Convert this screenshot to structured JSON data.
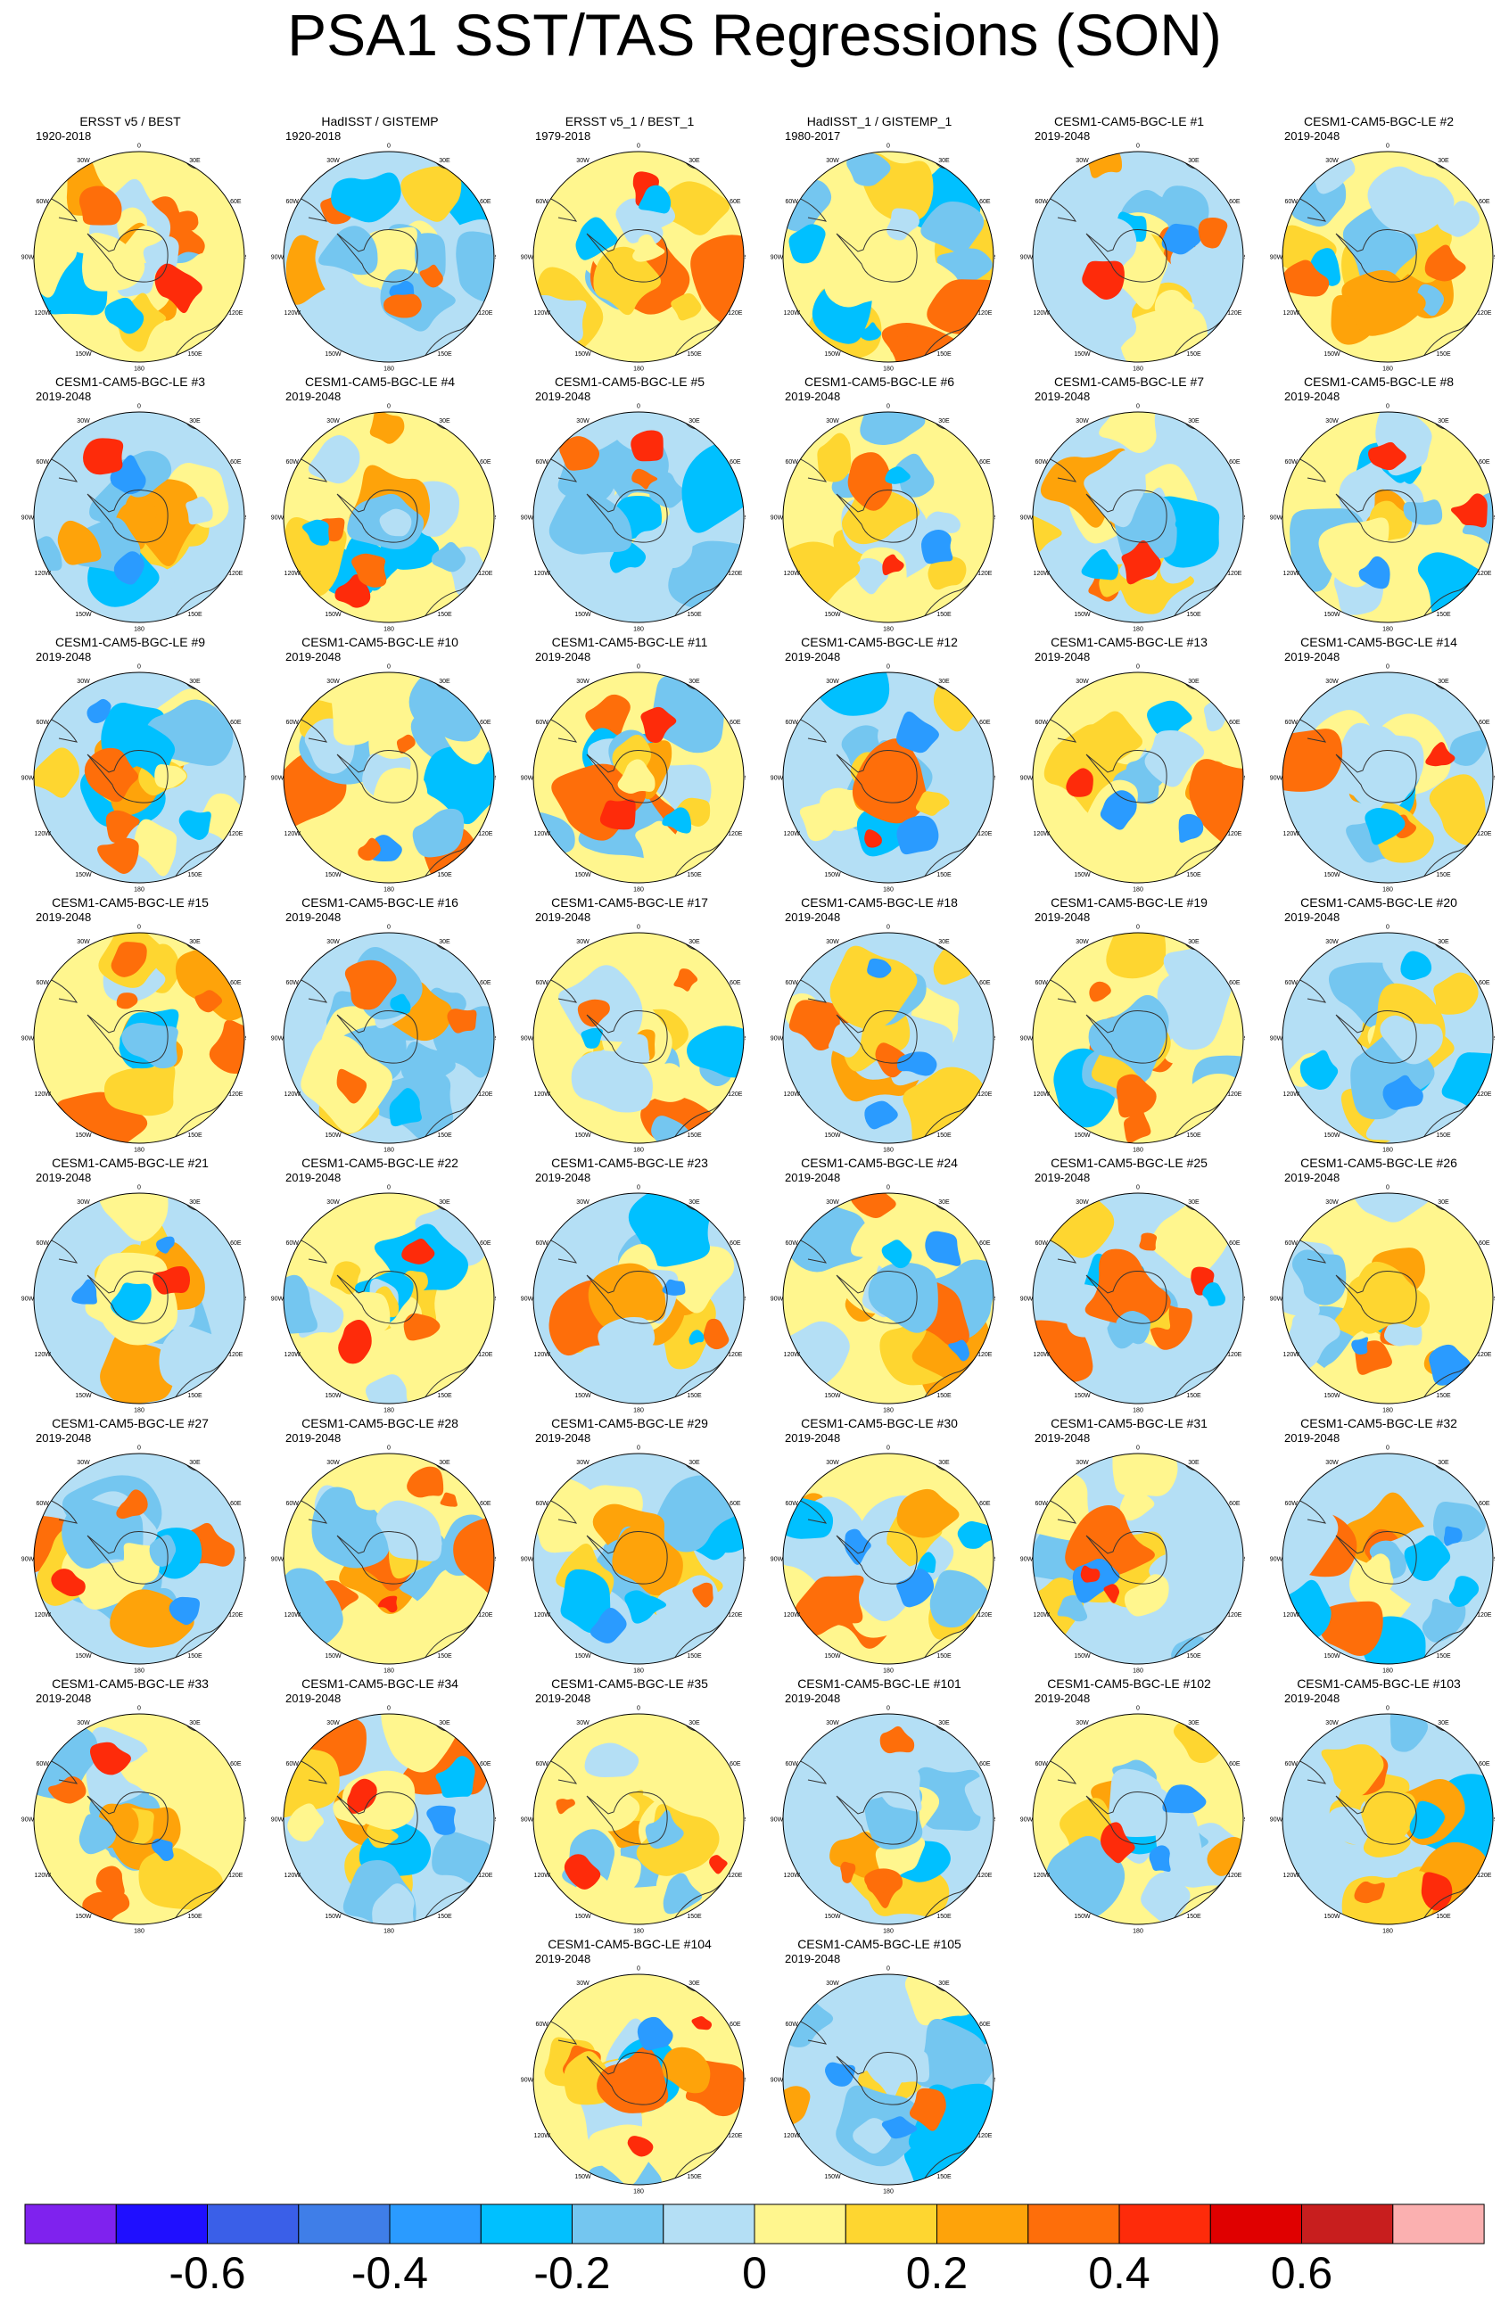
{
  "title": "PSA1 SST/TAS Regressions (SON)",
  "chart_data": {
    "type": "heatmap",
    "projection": "south-polar-stereographic",
    "title": "PSA1 SST/TAS Regressions (SON)",
    "longitude_labels": [
      "0",
      "30E",
      "60E",
      "90E",
      "120E",
      "150E",
      "180",
      "150W",
      "120W",
      "90W",
      "60W",
      "30W"
    ],
    "colorbar": {
      "levels": [
        -0.7,
        -0.6,
        -0.5,
        -0.4,
        -0.3,
        -0.2,
        -0.1,
        0,
        0.1,
        0.2,
        0.3,
        0.4,
        0.5,
        0.6,
        0.7
      ],
      "colors": [
        "#7f22ee",
        "#1f0fff",
        "#3a5fe8",
        "#3f7ee8",
        "#2a9bff",
        "#00c0ff",
        "#74c6f0",
        "#b4dff5",
        "#fff68e",
        "#fed630",
        "#fea30a",
        "#fe6e0a",
        "#fe2b0a",
        "#e00000",
        "#c81e1e",
        "#fbb0b0"
      ],
      "tick_labels": [
        "-0.6",
        "-0.4",
        "-0.2",
        "0",
        "0.2",
        "0.4",
        "0.6"
      ]
    },
    "panels": [
      {
        "title": "ERSST v5 / BEST",
        "period": "1920-2018"
      },
      {
        "title": "HadISST / GISTEMP",
        "period": "1920-2018"
      },
      {
        "title": "ERSST v5_1 / BEST_1",
        "period": "1979-2018"
      },
      {
        "title": "HadISST_1 / GISTEMP_1",
        "period": "1980-2017"
      },
      {
        "title": "CESM1-CAM5-BGC-LE #1",
        "period": "2019-2048"
      },
      {
        "title": "CESM1-CAM5-BGC-LE #2",
        "period": "2019-2048"
      },
      {
        "title": "CESM1-CAM5-BGC-LE #3",
        "period": "2019-2048"
      },
      {
        "title": "CESM1-CAM5-BGC-LE #4",
        "period": "2019-2048"
      },
      {
        "title": "CESM1-CAM5-BGC-LE #5",
        "period": "2019-2048"
      },
      {
        "title": "CESM1-CAM5-BGC-LE #6",
        "period": "2019-2048"
      },
      {
        "title": "CESM1-CAM5-BGC-LE #7",
        "period": "2019-2048"
      },
      {
        "title": "CESM1-CAM5-BGC-LE #8",
        "period": "2019-2048"
      },
      {
        "title": "CESM1-CAM5-BGC-LE #9",
        "period": "2019-2048"
      },
      {
        "title": "CESM1-CAM5-BGC-LE #10",
        "period": "2019-2048"
      },
      {
        "title": "CESM1-CAM5-BGC-LE #11",
        "period": "2019-2048"
      },
      {
        "title": "CESM1-CAM5-BGC-LE #12",
        "period": "2019-2048"
      },
      {
        "title": "CESM1-CAM5-BGC-LE #13",
        "period": "2019-2048"
      },
      {
        "title": "CESM1-CAM5-BGC-LE #14",
        "period": "2019-2048"
      },
      {
        "title": "CESM1-CAM5-BGC-LE #15",
        "period": "2019-2048"
      },
      {
        "title": "CESM1-CAM5-BGC-LE #16",
        "period": "2019-2048"
      },
      {
        "title": "CESM1-CAM5-BGC-LE #17",
        "period": "2019-2048"
      },
      {
        "title": "CESM1-CAM5-BGC-LE #18",
        "period": "2019-2048"
      },
      {
        "title": "CESM1-CAM5-BGC-LE #19",
        "period": "2019-2048"
      },
      {
        "title": "CESM1-CAM5-BGC-LE #20",
        "period": "2019-2048"
      },
      {
        "title": "CESM1-CAM5-BGC-LE #21",
        "period": "2019-2048"
      },
      {
        "title": "CESM1-CAM5-BGC-LE #22",
        "period": "2019-2048"
      },
      {
        "title": "CESM1-CAM5-BGC-LE #23",
        "period": "2019-2048"
      },
      {
        "title": "CESM1-CAM5-BGC-LE #24",
        "period": "2019-2048"
      },
      {
        "title": "CESM1-CAM5-BGC-LE #25",
        "period": "2019-2048"
      },
      {
        "title": "CESM1-CAM5-BGC-LE #26",
        "period": "2019-2048"
      },
      {
        "title": "CESM1-CAM5-BGC-LE #27",
        "period": "2019-2048"
      },
      {
        "title": "CESM1-CAM5-BGC-LE #28",
        "period": "2019-2048"
      },
      {
        "title": "CESM1-CAM5-BGC-LE #29",
        "period": "2019-2048"
      },
      {
        "title": "CESM1-CAM5-BGC-LE #30",
        "period": "2019-2048"
      },
      {
        "title": "CESM1-CAM5-BGC-LE #31",
        "period": "2019-2048"
      },
      {
        "title": "CESM1-CAM5-BGC-LE #32",
        "period": "2019-2048"
      },
      {
        "title": "CESM1-CAM5-BGC-LE #33",
        "period": "2019-2048"
      },
      {
        "title": "CESM1-CAM5-BGC-LE #34",
        "period": "2019-2048"
      },
      {
        "title": "CESM1-CAM5-BGC-LE #35",
        "period": "2019-2048"
      },
      {
        "title": "CESM1-CAM5-BGC-LE #101",
        "period": "2019-2048"
      },
      {
        "title": "CESM1-CAM5-BGC-LE #102",
        "period": "2019-2048"
      },
      {
        "title": "CESM1-CAM5-BGC-LE #103",
        "period": "2019-2048"
      },
      {
        "title": "CESM1-CAM5-BGC-LE #104",
        "period": "2019-2048"
      },
      {
        "title": "CESM1-CAM5-BGC-LE #105",
        "period": "2019-2048"
      }
    ]
  }
}
